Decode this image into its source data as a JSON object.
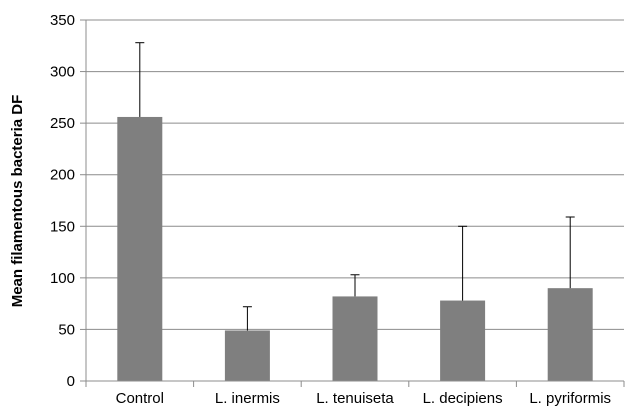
{
  "colors": {
    "bar": "#7f7f7f",
    "grid": "#8c8c8c",
    "axis": "#8c8c8c",
    "error_bar": "#000000",
    "text": "#000000"
  },
  "chart_data": {
    "type": "bar",
    "title": "",
    "xlabel": "",
    "ylabel": "Mean filamentous bacteria DF",
    "ylim": [
      0,
      350
    ],
    "yticks": [
      0,
      50,
      100,
      150,
      200,
      250,
      300,
      350
    ],
    "ytick_labels": [
      "0",
      "50",
      "100",
      "150",
      "200",
      "250",
      "300",
      "350"
    ],
    "grid": true,
    "legend": "none",
    "categories": [
      "Control",
      "L. inermis",
      "L. tenuiseta",
      "L. decipiens",
      "L. pyriformis"
    ],
    "values": [
      256,
      49,
      82,
      78,
      90
    ],
    "error_upper": [
      328,
      72,
      103,
      150,
      159
    ]
  }
}
